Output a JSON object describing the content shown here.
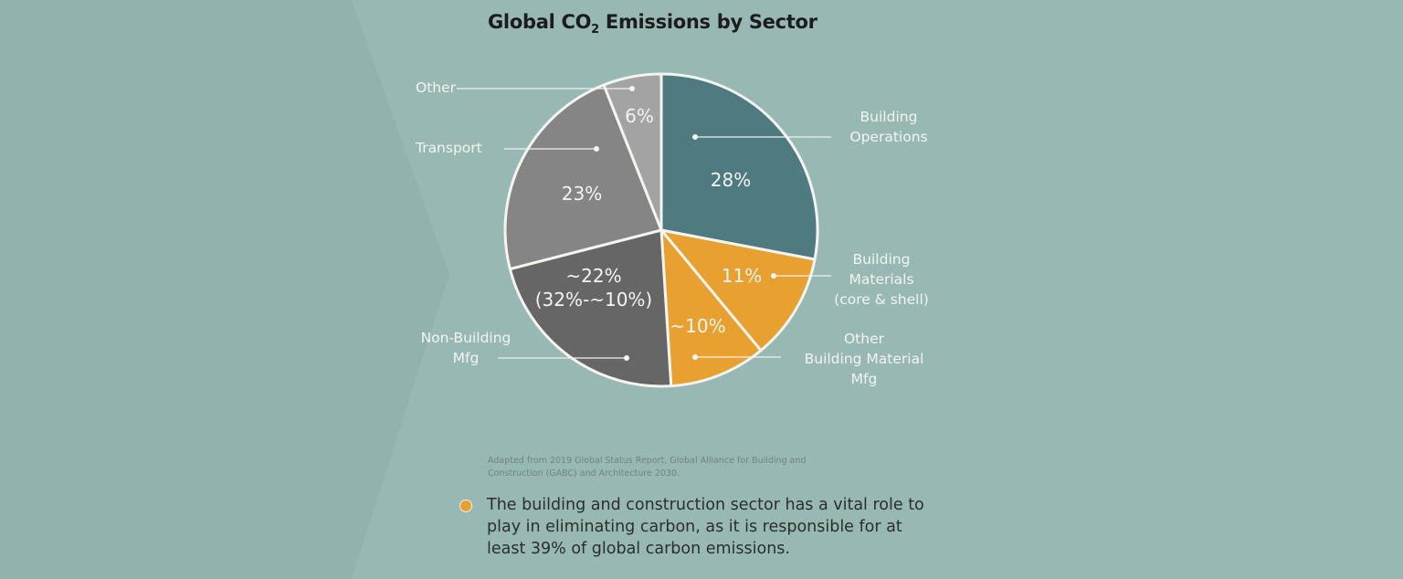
{
  "chart_data": {
    "type": "pie",
    "title": "Global CO",
    "title_subscript": "2",
    "title_suffix": " Emissions by Sector",
    "slices": [
      {
        "label_lines": [
          "Building",
          "Operations"
        ],
        "value": 28,
        "value_label": "28%",
        "color": "#4f7a80"
      },
      {
        "label_lines": [
          "Building",
          "Materials",
          "(core & shell)"
        ],
        "value": 11,
        "value_label": "11%",
        "color": "#e8a030"
      },
      {
        "label_lines": [
          "Other",
          "Building Material",
          "Mfg"
        ],
        "value": 10,
        "value_label": "~10%",
        "color": "#e8a030"
      },
      {
        "label_lines": [
          "Non-Building",
          "Mfg"
        ],
        "value": 22,
        "value_label": "~22%",
        "value_sublabel": "(32%-~10%)",
        "color": "#666666"
      },
      {
        "label_lines": [
          "Transport"
        ],
        "value": 23,
        "value_label": "23%",
        "color": "#858585"
      },
      {
        "label_lines": [
          "Other"
        ],
        "value": 6,
        "value_label": "6%",
        "color": "#a3a3a3"
      }
    ],
    "start_angle": "12 o'clock",
    "direction": "clockwise",
    "legend": "callout labels"
  },
  "source_note": "Adapted from 2019 Global Status Report, Global Alliance for Building and Construction (GABC) and Architecture 2030.",
  "body_text": "The building and construction sector has a vital role to play in eliminating carbon, as it is responsible for at least 39% of global carbon emissions.",
  "colors": {
    "background": "#98b8b3",
    "background_left": "#92b2ad",
    "accent": "#e8a030"
  }
}
